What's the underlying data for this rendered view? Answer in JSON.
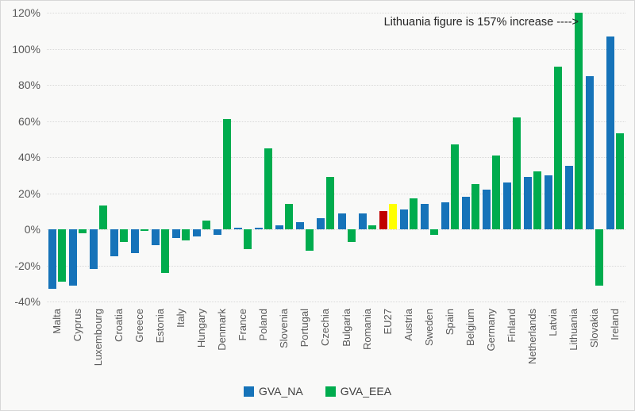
{
  "chart_data": {
    "type": "bar",
    "title": "",
    "categories": [
      "Malta",
      "Cyprus",
      "Luxembourg",
      "Croatia",
      "Greece",
      "Estonia",
      "Italy",
      "Hungary",
      "Denmark",
      "France",
      "Poland",
      "Slovenia",
      "Portugal",
      "Czechia",
      "Bulgaria",
      "Romania",
      "EU27",
      "Austria",
      "Sweden",
      "Spain",
      "Belgium",
      "Germany",
      "Finland",
      "Netherlands",
      "Latvia",
      "Lithuania",
      "Slovakia",
      "Ireland"
    ],
    "series": [
      {
        "name": "GVA_NA",
        "color": "#1673b9",
        "values": [
          -33,
          -31,
          -22,
          -15,
          -13,
          -9,
          -5,
          -4,
          -3,
          1,
          1,
          2,
          4,
          6,
          9,
          9,
          10,
          11,
          14,
          15,
          18,
          22,
          26,
          29,
          30,
          35,
          85,
          107
        ]
      },
      {
        "name": "GVA_EEA",
        "color": "#00ac4e",
        "values": [
          -29,
          -2,
          13,
          -7,
          -1,
          -24,
          -6,
          5,
          61,
          -11,
          45,
          14,
          -12,
          29,
          -7,
          2,
          14,
          17,
          -3,
          47,
          25,
          41,
          62,
          32,
          90,
          120,
          -31,
          53
        ]
      }
    ],
    "highlight": {
      "category": "EU27",
      "na_color": "#c00000",
      "eea_color": "#ffff00"
    },
    "annotation": "Lithuania figure is 157% increase ---->",
    "lithuania_actual_value": "157%",
    "ylim": [
      -40,
      120
    ],
    "ytick_values": [
      120,
      100,
      80,
      60,
      40,
      20,
      0,
      -20,
      -40
    ],
    "ytick_labels": [
      "120%",
      "100%",
      "80%",
      "60%",
      "40%",
      "20%",
      "0%",
      "-20%",
      "-40%"
    ],
    "grid": "horizontal-dotted",
    "legend_position": "bottom-center"
  },
  "colors": {
    "background": "#f9f9f8",
    "border": "#d7d7d7",
    "axis_text": "#595959",
    "gridline": "#d9d9d9",
    "annotation_text": "#262626"
  }
}
